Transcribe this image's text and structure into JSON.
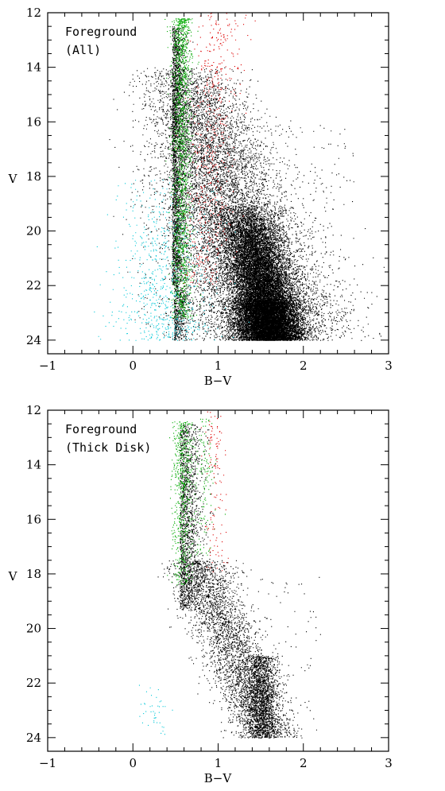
{
  "chart_data": [
    {
      "type": "scatter",
      "title": "",
      "xlabel": "B−V",
      "ylabel": "V",
      "xlim": [
        -1,
        3
      ],
      "ylim": [
        24.5,
        12
      ],
      "y_inverted": true,
      "xticks": [
        -1,
        0,
        1,
        2,
        3
      ],
      "yticks": [
        12,
        14,
        16,
        18,
        20,
        22,
        24
      ],
      "xtick_labels": [
        "−1",
        "0",
        "1",
        "2",
        "3"
      ],
      "ytick_labels": [
        "12",
        "14",
        "16",
        "18",
        "20",
        "22",
        "24"
      ],
      "annotation": [
        "Foreground",
        "(All)"
      ],
      "grid": false,
      "series_colors": [
        "#000000",
        "#00aa00",
        "#dd0000",
        "#00c8d8"
      ]
    },
    {
      "type": "scatter",
      "title": "",
      "xlabel": "B−V",
      "ylabel": "V",
      "xlim": [
        -1,
        3
      ],
      "ylim": [
        24.5,
        12
      ],
      "y_inverted": true,
      "xticks": [
        -1,
        0,
        1,
        2,
        3
      ],
      "yticks": [
        12,
        14,
        16,
        18,
        20,
        22,
        24
      ],
      "xtick_labels": [
        "−1",
        "0",
        "1",
        "2",
        "3"
      ],
      "ytick_labels": [
        "12",
        "14",
        "16",
        "18",
        "20",
        "22",
        "24"
      ],
      "annotation": [
        "Foreground",
        "(Thick Disk)"
      ],
      "grid": false,
      "series_colors": [
        "#000000",
        "#00aa00",
        "#dd0000",
        "#00c8d8"
      ]
    }
  ]
}
